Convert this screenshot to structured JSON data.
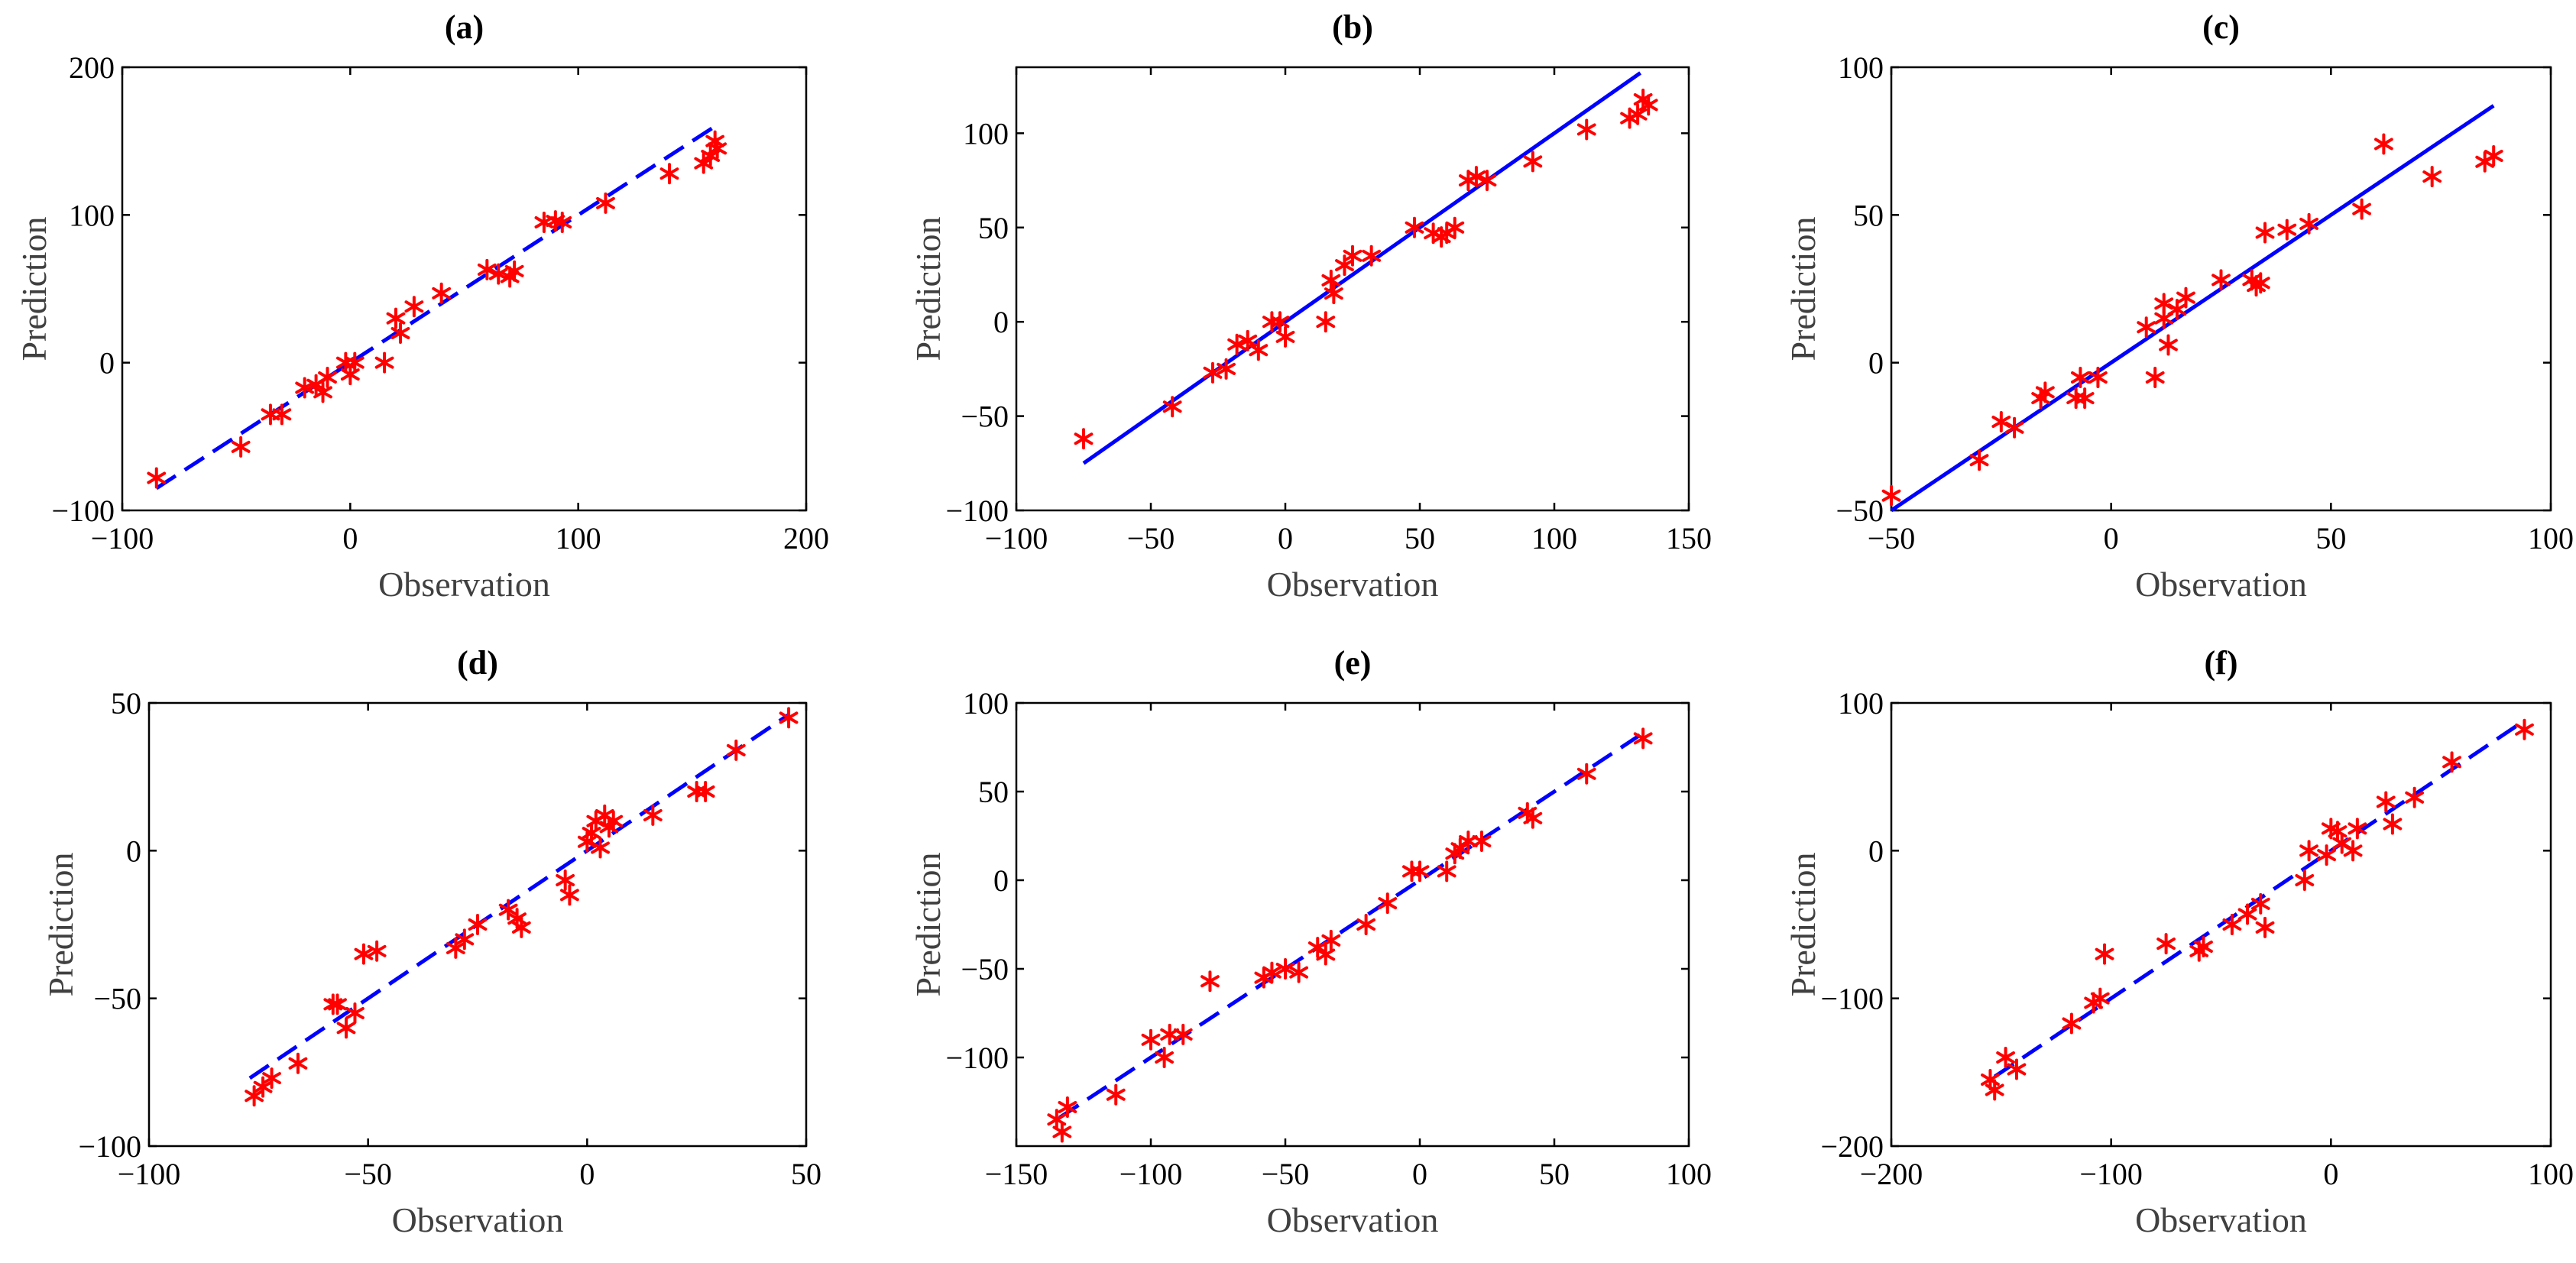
{
  "colors": {
    "marker": "#ff0000",
    "fit_line": "#0000ff",
    "axes": "#000000",
    "label": "#404040"
  },
  "chart_data": [
    {
      "type": "scatter",
      "title": "(a)",
      "xlabel": "Observation",
      "ylabel": "Prediction",
      "xlim": [
        -100,
        200
      ],
      "ylim": [
        -100,
        200
      ],
      "xticks": [
        -100,
        0,
        100,
        200
      ],
      "yticks": [
        -100,
        0,
        100,
        200
      ],
      "xtick_labels": [
        "−100",
        "0",
        "100",
        "200"
      ],
      "ytick_labels": [
        "−100",
        "0",
        "100",
        "200"
      ],
      "fit_line": {
        "x": [
          -85,
          160
        ],
        "y": [
          -85,
          160
        ],
        "style": "dashed"
      },
      "points": {
        "x": [
          -85,
          -48,
          -35,
          -30,
          -20,
          -15,
          -12,
          -10,
          -2,
          0,
          2,
          15,
          20,
          22,
          28,
          40,
          60,
          65,
          70,
          72,
          85,
          90,
          93,
          112,
          140,
          155,
          158,
          160,
          161
        ],
        "y": [
          -78,
          -57,
          -35,
          -35,
          -17,
          -15,
          -20,
          -10,
          0,
          -8,
          0,
          0,
          30,
          20,
          38,
          47,
          63,
          60,
          58,
          62,
          95,
          96,
          95,
          108,
          128,
          135,
          140,
          150,
          145
        ]
      }
    },
    {
      "type": "scatter",
      "title": "(b)",
      "xlabel": "Observation",
      "ylabel": "Prediction",
      "xlim": [
        -100,
        150
      ],
      "ylim": [
        -100,
        135
      ],
      "xticks": [
        -100,
        -50,
        0,
        50,
        100,
        150
      ],
      "yticks": [
        -100,
        -50,
        0,
        50,
        100
      ],
      "xtick_labels": [
        "−100",
        "−50",
        "0",
        "50",
        "100",
        "150"
      ],
      "ytick_labels": [
        "−100",
        "−50",
        "0",
        "50",
        "100"
      ],
      "fit_line": {
        "x": [
          -75,
          132
        ],
        "y": [
          -75,
          132
        ],
        "style": "solid"
      },
      "points": {
        "x": [
          -75,
          -42,
          -27,
          -22,
          -18,
          -14,
          -10,
          -5,
          -2,
          0,
          15,
          17,
          18,
          22,
          25,
          32,
          48,
          55,
          58,
          60,
          63,
          68,
          71,
          75,
          92,
          112,
          128,
          131,
          133,
          135
        ],
        "y": [
          -62,
          -45,
          -27,
          -25,
          -12,
          -10,
          -15,
          0,
          0,
          -8,
          0,
          22,
          15,
          30,
          35,
          35,
          50,
          47,
          45,
          47,
          50,
          75,
          77,
          75,
          85,
          102,
          108,
          110,
          118,
          115
        ]
      }
    },
    {
      "type": "scatter",
      "title": "(c)",
      "xlabel": "Observation",
      "ylabel": "Prediction",
      "xlim": [
        -50,
        100
      ],
      "ylim": [
        -50,
        100
      ],
      "xticks": [
        -50,
        0,
        50,
        100
      ],
      "yticks": [
        -50,
        0,
        50,
        100
      ],
      "xtick_labels": [
        "−50",
        "0",
        "50",
        "100"
      ],
      "ytick_labels": [
        "−50",
        "0",
        "50",
        "100"
      ],
      "fit_line": {
        "x": [
          -50,
          87
        ],
        "y": [
          -50,
          87
        ],
        "style": "solid"
      },
      "points": {
        "x": [
          -50,
          -30,
          -25,
          -22,
          -16,
          -15,
          -8,
          -7,
          -6,
          -3,
          8,
          10,
          12,
          12,
          13,
          15,
          17,
          25,
          32,
          33,
          34,
          35,
          40,
          45,
          57,
          62,
          73,
          85,
          87
        ],
        "y": [
          -45,
          -33,
          -20,
          -22,
          -12,
          -10,
          -12,
          -5,
          -12,
          -5,
          12,
          -5,
          15,
          20,
          6,
          18,
          22,
          28,
          28,
          26,
          27,
          44,
          45,
          47,
          52,
          74,
          63,
          68,
          70
        ]
      }
    },
    {
      "type": "scatter",
      "title": "(d)",
      "xlabel": "Observation",
      "ylabel": "Prediction",
      "xlim": [
        -100,
        50
      ],
      "ylim": [
        -100,
        50
      ],
      "xticks": [
        -100,
        -50,
        0,
        50
      ],
      "yticks": [
        -100,
        -50,
        0,
        50
      ],
      "xtick_labels": [
        "−100",
        "−50",
        "0",
        "50"
      ],
      "ytick_labels": [
        "−100",
        "−50",
        "0",
        "50"
      ],
      "fit_line": {
        "x": [
          -77,
          46
        ],
        "y": [
          -77,
          46
        ],
        "style": "dashed"
      },
      "points": {
        "x": [
          -76,
          -74,
          -72,
          -66,
          -58,
          -57,
          -55,
          -53,
          -51,
          -48,
          -30,
          -28,
          -25,
          -18,
          -16,
          -15,
          -5,
          -4,
          0,
          1,
          2,
          3,
          4,
          5,
          6,
          15,
          25,
          27,
          34,
          46
        ],
        "y": [
          -83,
          -80,
          -77,
          -72,
          -52,
          -52,
          -60,
          -55,
          -35,
          -34,
          -33,
          -30,
          -25,
          -20,
          -23,
          -26,
          -10,
          -15,
          3,
          6,
          10,
          1,
          12,
          8,
          10,
          12,
          20,
          20,
          34,
          45
        ]
      }
    },
    {
      "type": "scatter",
      "title": "(e)",
      "xlabel": "Observation",
      "ylabel": "Prediction",
      "xlim": [
        -150,
        100
      ],
      "ylim": [
        -150,
        100
      ],
      "xticks": [
        -150,
        -100,
        -50,
        0,
        50,
        100
      ],
      "yticks": [
        -100,
        -50,
        0,
        50,
        100
      ],
      "xtick_labels": [
        "−150",
        "−100",
        "−50",
        "0",
        "50",
        "100"
      ],
      "ytick_labels": [
        "−100",
        "−50",
        "0",
        "50",
        "100"
      ],
      "fit_line": {
        "x": [
          -134,
          83
        ],
        "y": [
          -134,
          83
        ],
        "style": "dashed"
      },
      "points": {
        "x": [
          -135,
          -133,
          -131,
          -113,
          -100,
          -95,
          -93,
          -88,
          -78,
          -58,
          -55,
          -50,
          -45,
          -38,
          -35,
          -33,
          -20,
          -12,
          -3,
          0,
          10,
          13,
          15,
          18,
          23,
          40,
          42,
          62,
          83
        ],
        "y": [
          -135,
          -142,
          -128,
          -121,
          -90,
          -100,
          -87,
          -87,
          -57,
          -55,
          -52,
          -50,
          -52,
          -38,
          -42,
          -34,
          -25,
          -13,
          5,
          5,
          5,
          15,
          18,
          22,
          22,
          38,
          35,
          60,
          80
        ]
      }
    },
    {
      "type": "scatter",
      "title": "(f)",
      "xlabel": "Observation",
      "ylabel": "Prediction",
      "xlim": [
        -200,
        100
      ],
      "ylim": [
        -200,
        100
      ],
      "xticks": [
        -200,
        -100,
        0,
        100
      ],
      "yticks": [
        -200,
        -100,
        0,
        100
      ],
      "xtick_labels": [
        "−200",
        "−100",
        "0",
        "100"
      ],
      "ytick_labels": [
        "−200",
        "−100",
        "0",
        "100"
      ],
      "fit_line": {
        "x": [
          -153,
          88
        ],
        "y": [
          -153,
          88
        ],
        "style": "dashed"
      },
      "points": {
        "x": [
          -155,
          -153,
          -148,
          -143,
          -118,
          -108,
          -105,
          -103,
          -75,
          -60,
          -58,
          -45,
          -38,
          -32,
          -30,
          -12,
          -10,
          -2,
          0,
          3,
          5,
          10,
          12,
          25,
          28,
          38,
          55,
          88
        ],
        "y": [
          -155,
          -162,
          -140,
          -148,
          -117,
          -103,
          -100,
          -70,
          -63,
          -68,
          -65,
          -50,
          -43,
          -36,
          -52,
          -20,
          0,
          -3,
          15,
          13,
          5,
          0,
          15,
          33,
          18,
          36,
          60,
          82
        ]
      }
    }
  ]
}
